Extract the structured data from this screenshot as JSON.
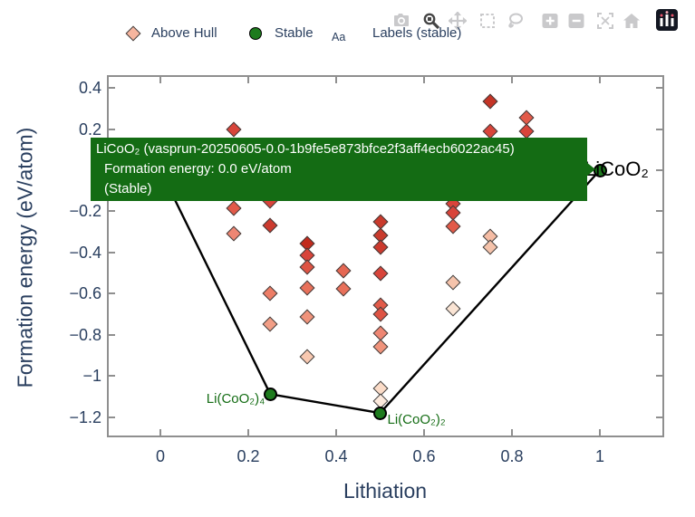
{
  "colors": {
    "accent_navy": "#2a3f5f",
    "stable_green": "#1e7b1e",
    "tooltip_green": "#146c14",
    "label_green": "#156d15",
    "hull_line": "#000000",
    "axis_gray": "#8f8f8f",
    "modebar_gray": "#c9c9cb",
    "modebar_active": "#444444"
  },
  "modebar": {
    "buttons": [
      {
        "name": "camera-icon",
        "active": false
      },
      {
        "name": "zoom-icon",
        "active": true
      },
      {
        "name": "pan-icon",
        "active": false
      },
      {
        "name": "box-select-icon",
        "active": false
      },
      {
        "name": "lasso-icon",
        "active": false
      },
      {
        "name": "zoom-in-icon",
        "active": false
      },
      {
        "name": "zoom-out-icon",
        "active": false
      },
      {
        "name": "autoscale-icon",
        "active": false
      },
      {
        "name": "home-icon",
        "active": false
      },
      {
        "name": "plotly-logo",
        "active": false
      }
    ]
  },
  "legend": {
    "items": [
      {
        "label": "Above Hull",
        "marker": "diamond",
        "color": "#f6b59e"
      },
      {
        "label": "Stable",
        "marker": "circle",
        "color": "#1e7b1e"
      },
      {
        "label": "Labels (stable)",
        "marker_text": "Aa"
      }
    ]
  },
  "tooltip": {
    "title": "LiCoO₂ (vasprun-20250605-0.0-1b9fe5e873bfce2f3aff4ecb6022ac45)",
    "line2": "Formation energy: 0.0 eV/atom",
    "line3": "(Stable)"
  },
  "chart_data": {
    "type": "scatter",
    "xlabel": "Lithiation",
    "ylabel": "Formation energy (eV/atom)",
    "xlim": [
      -0.12,
      1.14
    ],
    "ylim": [
      -1.3,
      0.46
    ],
    "grid": false,
    "legend_position": "top",
    "x_ticks": [
      0,
      0.2,
      0.4,
      0.6,
      0.8,
      1
    ],
    "x_tick_labels": [
      "0",
      "0.2",
      "0.4",
      "0.6",
      "0.8",
      "1"
    ],
    "y_ticks": [
      0.4,
      0.2,
      0,
      -0.2,
      -0.4,
      -0.6,
      -0.8,
      -1,
      -1.2
    ],
    "y_tick_labels": [
      "0.4",
      "0.2",
      "0",
      "−0.2",
      "−0.4",
      "−0.6",
      "−0.8",
      "−1",
      "−1.2"
    ],
    "series": [
      {
        "name": "Above Hull",
        "marker": "diamond",
        "points": [
          {
            "x": 0.167,
            "y": 0.2,
            "color": "#d8443a"
          },
          {
            "x": 0.75,
            "y": 0.335,
            "color": "#c43426"
          },
          {
            "x": 0.833,
            "y": 0.255,
            "color": "#e25a49"
          },
          {
            "x": 0.75,
            "y": 0.19,
            "color": "#d8443a"
          },
          {
            "x": 0.833,
            "y": 0.19,
            "color": "#d8443a"
          },
          {
            "x": 0.25,
            "y": -0.15,
            "color": "#d8443a"
          },
          {
            "x": 0.667,
            "y": -0.165,
            "color": "#d8443a"
          },
          {
            "x": 0.167,
            "y": -0.185,
            "color": "#e25a49"
          },
          {
            "x": 0.667,
            "y": -0.205,
            "color": "#d8443a"
          },
          {
            "x": 0.5,
            "y": -0.25,
            "color": "#c93a2c"
          },
          {
            "x": 0.25,
            "y": -0.27,
            "color": "#cc3a2e"
          },
          {
            "x": 0.667,
            "y": -0.275,
            "color": "#e25a49"
          },
          {
            "x": 0.167,
            "y": -0.31,
            "color": "#ee8673"
          },
          {
            "x": 0.5,
            "y": -0.315,
            "color": "#c93a2c"
          },
          {
            "x": 0.75,
            "y": -0.32,
            "color": "#f5bca4"
          },
          {
            "x": 0.333,
            "y": -0.355,
            "color": "#c22b1d"
          },
          {
            "x": 0.5,
            "y": -0.375,
            "color": "#cc3a2e"
          },
          {
            "x": 0.75,
            "y": -0.375,
            "color": "#f5c3ab"
          },
          {
            "x": 0.333,
            "y": -0.415,
            "color": "#d8443a"
          },
          {
            "x": 0.333,
            "y": -0.47,
            "color": "#de5343"
          },
          {
            "x": 0.417,
            "y": -0.49,
            "color": "#e56753"
          },
          {
            "x": 0.5,
            "y": -0.5,
            "color": "#d8443a"
          },
          {
            "x": 0.667,
            "y": -0.545,
            "color": "#f5c3ab"
          },
          {
            "x": 0.333,
            "y": -0.57,
            "color": "#e8705a"
          },
          {
            "x": 0.417,
            "y": -0.575,
            "color": "#e8705a"
          },
          {
            "x": 0.25,
            "y": -0.6,
            "color": "#ed7d66"
          },
          {
            "x": 0.5,
            "y": -0.655,
            "color": "#e25a49"
          },
          {
            "x": 0.667,
            "y": -0.675,
            "color": "#fae4d4"
          },
          {
            "x": 0.5,
            "y": -0.7,
            "color": "#de5343"
          },
          {
            "x": 0.333,
            "y": -0.715,
            "color": "#f0937b"
          },
          {
            "x": 0.25,
            "y": -0.75,
            "color": "#f29e86"
          },
          {
            "x": 0.5,
            "y": -0.79,
            "color": "#ee8673"
          },
          {
            "x": 0.5,
            "y": -0.86,
            "color": "#f0937b"
          },
          {
            "x": 0.333,
            "y": -0.905,
            "color": "#f8c8b0"
          },
          {
            "x": 0.5,
            "y": -1.06,
            "color": "#fbdcc8"
          },
          {
            "x": 0.5,
            "y": -1.12,
            "color": "#fdeadd"
          }
        ]
      },
      {
        "name": "Stable",
        "marker": "circle",
        "color": "#1e7b1e",
        "points": [
          {
            "x": 0.25,
            "y": -1.088,
            "label": "Li(CoO₂)₄",
            "label_color": "#156d15",
            "label_size": 15,
            "anchor": "right",
            "dx": -6,
            "dy": -3
          },
          {
            "x": 0.5,
            "y": -1.18,
            "label": "Li(CoO₂)₂",
            "label_color": "#156d15",
            "label_size": 15,
            "anchor": "left",
            "dx": 8,
            "dy": -1
          },
          {
            "x": 1.0,
            "y": 0.0,
            "label": "LiCoO₂",
            "label_color": "#000000",
            "label_size": 22,
            "anchor": "left",
            "dx": -17,
            "dy": -14
          }
        ]
      },
      {
        "name": "Hull",
        "type": "line",
        "color": "#000000",
        "points": [
          [
            0,
            0
          ],
          [
            0.25,
            -1.088
          ],
          [
            0.5,
            -1.18
          ],
          [
            1,
            0
          ]
        ]
      }
    ]
  }
}
